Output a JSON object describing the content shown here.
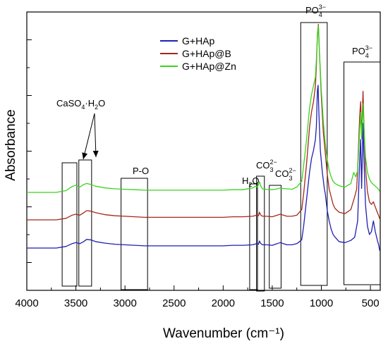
{
  "chart_data": {
    "type": "line",
    "title": "",
    "xlabel": "Wavenumber (cm⁻¹)",
    "ylabel": "Absorbance",
    "xlim": [
      4000,
      400
    ],
    "x_reversed": true,
    "y_tick_labels": false,
    "x_ticks": [
      4000,
      3500,
      3000,
      2500,
      2000,
      1500,
      1000,
      500
    ],
    "legend": {
      "placement": "top-center",
      "entries": [
        "G+HAp",
        "G+HAp@B",
        "G+HAp@Zn"
      ]
    },
    "series": [
      {
        "name": "G+HAp",
        "color": "#1f1fb4",
        "points": [
          [
            4000,
            0.0
          ],
          [
            3700,
            0.0
          ],
          [
            3600,
            0.03
          ],
          [
            3540,
            0.08
          ],
          [
            3500,
            0.1
          ],
          [
            3460,
            0.08
          ],
          [
            3420,
            0.12
          ],
          [
            3390,
            0.16
          ],
          [
            3350,
            0.15
          ],
          [
            3300,
            0.12
          ],
          [
            3200,
            0.09
          ],
          [
            3100,
            0.07
          ],
          [
            3000,
            0.06
          ],
          [
            2900,
            0.05
          ],
          [
            2800,
            0.04
          ],
          [
            2500,
            0.04
          ],
          [
            2200,
            0.04
          ],
          [
            2000,
            0.04
          ],
          [
            1900,
            0.05
          ],
          [
            1800,
            0.05
          ],
          [
            1700,
            0.06
          ],
          [
            1660,
            0.08
          ],
          [
            1640,
            0.07
          ],
          [
            1630,
            0.13
          ],
          [
            1620,
            0.09
          ],
          [
            1600,
            0.06
          ],
          [
            1560,
            0.06
          ],
          [
            1500,
            0.05
          ],
          [
            1450,
            0.08
          ],
          [
            1420,
            0.1
          ],
          [
            1400,
            0.09
          ],
          [
            1350,
            0.06
          ],
          [
            1300,
            0.06
          ],
          [
            1250,
            0.08
          ],
          [
            1200,
            0.15
          ],
          [
            1180,
            0.4
          ],
          [
            1150,
            0.9
          ],
          [
            1120,
            1.4
          ],
          [
            1100,
            1.65
          ],
          [
            1080,
            1.8
          ],
          [
            1060,
            2.0
          ],
          [
            1050,
            2.25
          ],
          [
            1040,
            2.9
          ],
          [
            1033,
            3.0
          ],
          [
            1025,
            2.5
          ],
          [
            1010,
            1.8
          ],
          [
            990,
            1.4
          ],
          [
            970,
            1.1
          ],
          [
            960,
            1.0
          ],
          [
            940,
            0.7
          ],
          [
            920,
            0.5
          ],
          [
            900,
            0.35
          ],
          [
            880,
            0.25
          ],
          [
            860,
            0.2
          ],
          [
            820,
            0.12
          ],
          [
            760,
            0.1
          ],
          [
            700,
            0.14
          ],
          [
            660,
            0.2
          ],
          [
            630,
            0.5
          ],
          [
            610,
            1.6
          ],
          [
            600,
            2.0
          ],
          [
            590,
            1.1
          ],
          [
            575,
            2.3
          ],
          [
            565,
            1.6
          ],
          [
            550,
            0.8
          ],
          [
            530,
            0.4
          ],
          [
            510,
            0.25
          ],
          [
            490,
            0.3
          ],
          [
            470,
            0.5
          ],
          [
            450,
            0.3
          ],
          [
            430,
            0.15
          ],
          [
            415,
            0.05
          ],
          [
            405,
            -0.05
          ]
        ]
      },
      {
        "name": "G+HAp@B",
        "color": "#a5281a",
        "points": [
          [
            4000,
            0.0
          ],
          [
            3700,
            0.0
          ],
          [
            3600,
            0.03
          ],
          [
            3540,
            0.09
          ],
          [
            3500,
            0.11
          ],
          [
            3460,
            0.09
          ],
          [
            3420,
            0.14
          ],
          [
            3390,
            0.18
          ],
          [
            3350,
            0.17
          ],
          [
            3300,
            0.14
          ],
          [
            3200,
            0.1
          ],
          [
            3100,
            0.08
          ],
          [
            3000,
            0.07
          ],
          [
            2900,
            0.06
          ],
          [
            2800,
            0.05
          ],
          [
            2500,
            0.05
          ],
          [
            2200,
            0.05
          ],
          [
            2000,
            0.05
          ],
          [
            1900,
            0.06
          ],
          [
            1800,
            0.06
          ],
          [
            1700,
            0.07
          ],
          [
            1660,
            0.09
          ],
          [
            1640,
            0.08
          ],
          [
            1630,
            0.15
          ],
          [
            1620,
            0.1
          ],
          [
            1600,
            0.07
          ],
          [
            1560,
            0.07
          ],
          [
            1500,
            0.06
          ],
          [
            1450,
            0.09
          ],
          [
            1420,
            0.11
          ],
          [
            1400,
            0.1
          ],
          [
            1350,
            0.07
          ],
          [
            1300,
            0.07
          ],
          [
            1250,
            0.09
          ],
          [
            1200,
            0.2
          ],
          [
            1180,
            0.5
          ],
          [
            1150,
            1.1
          ],
          [
            1120,
            1.8
          ],
          [
            1100,
            2.1
          ],
          [
            1080,
            2.3
          ],
          [
            1060,
            2.6
          ],
          [
            1050,
            3.0
          ],
          [
            1040,
            3.6
          ],
          [
            1030,
            3.8
          ],
          [
            1020,
            3.3
          ],
          [
            1000,
            2.4
          ],
          [
            980,
            1.7
          ],
          [
            960,
            1.3
          ],
          [
            940,
            0.9
          ],
          [
            920,
            0.6
          ],
          [
            900,
            0.45
          ],
          [
            880,
            0.3
          ],
          [
            860,
            0.22
          ],
          [
            820,
            0.15
          ],
          [
            760,
            0.12
          ],
          [
            700,
            0.2
          ],
          [
            660,
            0.45
          ],
          [
            640,
            0.6
          ],
          [
            630,
            1.0
          ],
          [
            610,
            2.0
          ],
          [
            600,
            2.3
          ],
          [
            590,
            1.6
          ],
          [
            575,
            2.5
          ],
          [
            565,
            1.8
          ],
          [
            550,
            1.0
          ],
          [
            530,
            0.55
          ],
          [
            510,
            0.35
          ],
          [
            490,
            0.3
          ],
          [
            470,
            0.35
          ],
          [
            450,
            0.25
          ],
          [
            430,
            0.15
          ],
          [
            415,
            0.08
          ],
          [
            405,
            0.02
          ]
        ]
      },
      {
        "name": "G+HAp@Zn",
        "color": "#3ad41e",
        "points": [
          [
            4000,
            0.0
          ],
          [
            3700,
            0.0
          ],
          [
            3600,
            0.04
          ],
          [
            3540,
            0.13
          ],
          [
            3500,
            0.16
          ],
          [
            3460,
            0.12
          ],
          [
            3420,
            0.18
          ],
          [
            3390,
            0.2
          ],
          [
            3350,
            0.18
          ],
          [
            3300,
            0.14
          ],
          [
            3200,
            0.1
          ],
          [
            3100,
            0.08
          ],
          [
            3000,
            0.07
          ],
          [
            2900,
            0.06
          ],
          [
            2800,
            0.05
          ],
          [
            2500,
            0.05
          ],
          [
            2200,
            0.05
          ],
          [
            2000,
            0.05
          ],
          [
            1900,
            0.06
          ],
          [
            1800,
            0.06
          ],
          [
            1700,
            0.1
          ],
          [
            1670,
            0.14
          ],
          [
            1650,
            0.12
          ],
          [
            1640,
            0.18
          ],
          [
            1630,
            0.24
          ],
          [
            1620,
            0.16
          ],
          [
            1600,
            0.08
          ],
          [
            1560,
            0.07
          ],
          [
            1500,
            0.06
          ],
          [
            1450,
            0.08
          ],
          [
            1420,
            0.1
          ],
          [
            1400,
            0.09
          ],
          [
            1350,
            0.08
          ],
          [
            1300,
            0.07
          ],
          [
            1250,
            0.12
          ],
          [
            1200,
            0.25
          ],
          [
            1180,
            0.6
          ],
          [
            1150,
            1.2
          ],
          [
            1120,
            1.9
          ],
          [
            1100,
            2.2
          ],
          [
            1080,
            2.4
          ],
          [
            1060,
            2.6
          ],
          [
            1050,
            3.0
          ],
          [
            1040,
            3.5
          ],
          [
            1030,
            3.75
          ],
          [
            1020,
            3.2
          ],
          [
            1000,
            2.3
          ],
          [
            980,
            1.6
          ],
          [
            960,
            1.1
          ],
          [
            940,
            0.75
          ],
          [
            920,
            0.5
          ],
          [
            900,
            0.35
          ],
          [
            880,
            0.25
          ],
          [
            860,
            0.2
          ],
          [
            820,
            0.15
          ],
          [
            760,
            0.12
          ],
          [
            700,
            0.2
          ],
          [
            670,
            0.45
          ],
          [
            650,
            0.35
          ],
          [
            630,
            0.5
          ],
          [
            610,
            1.4
          ],
          [
            600,
            1.8
          ],
          [
            590,
            1.2
          ],
          [
            575,
            2.0
          ],
          [
            565,
            1.4
          ],
          [
            550,
            0.8
          ],
          [
            530,
            0.45
          ],
          [
            510,
            0.3
          ],
          [
            490,
            0.22
          ],
          [
            470,
            0.18
          ],
          [
            450,
            0.14
          ],
          [
            430,
            0.1
          ],
          [
            415,
            0.06
          ],
          [
            405,
            0.02
          ]
        ]
      }
    ],
    "annotations": [
      {
        "id": "caso4",
        "main": "CaSO",
        "sub": "4",
        "suffix": "·H",
        "sub2": "2",
        "suffix2": "O"
      },
      {
        "id": "po",
        "main": "P-O"
      },
      {
        "id": "h2o",
        "main": "H",
        "sub": "2",
        "suffix": "O"
      },
      {
        "id": "co3a",
        "main": "CO",
        "sup": "2−",
        "sub": "3"
      },
      {
        "id": "co3b",
        "main": "CO",
        "sup": "2−",
        "sub": "3"
      },
      {
        "id": "po4a",
        "main": "PO",
        "sup": "3−",
        "sub": "4"
      },
      {
        "id": "po4b",
        "main": "PO",
        "sup": "3−",
        "sub": "4"
      }
    ]
  }
}
